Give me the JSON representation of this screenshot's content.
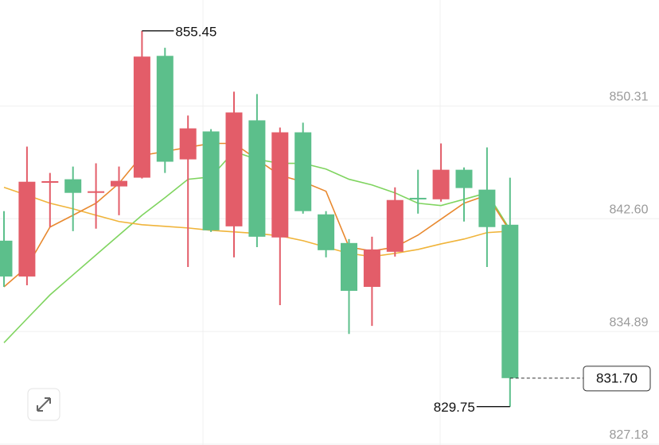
{
  "chart_data": {
    "type": "candlestick",
    "open": [
      841.1,
      838.65,
      845.06,
      845.3,
      844.37,
      844.81,
      845.41,
      853.74,
      846.66,
      848.57,
      842.08,
      849.33,
      841.32,
      848.51,
      842.9,
      840.94,
      837.94,
      840.34,
      844.03,
      843.93,
      845.95,
      844.59,
      842.19
    ],
    "high": [
      843.12,
      847.53,
      845.73,
      846.17,
      846.39,
      846.17,
      855.45,
      854.29,
      849.66,
      848.73,
      851.29,
      851.13,
      848.84,
      849.17,
      843.12,
      841.21,
      841.37,
      844.75,
      845.95,
      847.75,
      846.11,
      847.48,
      845.41
    ],
    "low": [
      837.94,
      838.05,
      842.03,
      841.75,
      841.92,
      842.84,
      845.35,
      845.73,
      839.3,
      841.7,
      839.96,
      840.66,
      836.69,
      842.95,
      839.96,
      834.72,
      835.27,
      840.01,
      842.95,
      843.77,
      842.41,
      839.3,
      829.75
    ],
    "close": [
      838.65,
      845.13,
      845.17,
      844.37,
      844.48,
      845.19,
      853.69,
      846.5,
      848.78,
      841.81,
      849.87,
      841.37,
      848.51,
      843.12,
      840.45,
      837.67,
      840.5,
      843.88,
      843.98,
      845.95,
      844.7,
      842.03,
      831.7
    ],
    "up_color": "#e35d69",
    "down_color": "#5cbf8b",
    "moving_averages": [
      {
        "color": "#7fd45f",
        "values": [
          834.12,
          835.76,
          837.39,
          838.76,
          840.12,
          841.48,
          842.84,
          844.04,
          845.3,
          845.46,
          847.2,
          846.66,
          846.39,
          846.39,
          846.0,
          845.3,
          844.91,
          844.37,
          843.66,
          843.5,
          843.93,
          844.37,
          841.86
        ]
      },
      {
        "color": "#f0b43a",
        "values": [
          844.75,
          844.21,
          843.66,
          843.28,
          842.84,
          842.41,
          842.19,
          842.08,
          841.97,
          841.81,
          841.7,
          841.59,
          841.43,
          841.1,
          840.66,
          840.23,
          840.01,
          840.23,
          840.5,
          840.88,
          841.21,
          841.65,
          841.75
        ]
      },
      {
        "color": "#e8892f",
        "values": [
          837.94,
          839.3,
          842.03,
          842.84,
          843.66,
          845.02,
          846.93,
          847.2,
          847.48,
          847.75,
          847.75,
          846.66,
          845.57,
          845.13,
          844.48,
          840.66,
          840.39,
          840.66,
          841.48,
          842.57,
          843.66,
          844.21,
          841.75
        ]
      }
    ],
    "ylim": [
      827.18,
      857.56
    ],
    "yticks": [
      827.18,
      834.89,
      {
        "value": 842.6,
        "label": "842.60"
      },
      850.31
    ],
    "grid": true,
    "last_price": {
      "value": 831.7,
      "label": "831.70"
    }
  }
}
